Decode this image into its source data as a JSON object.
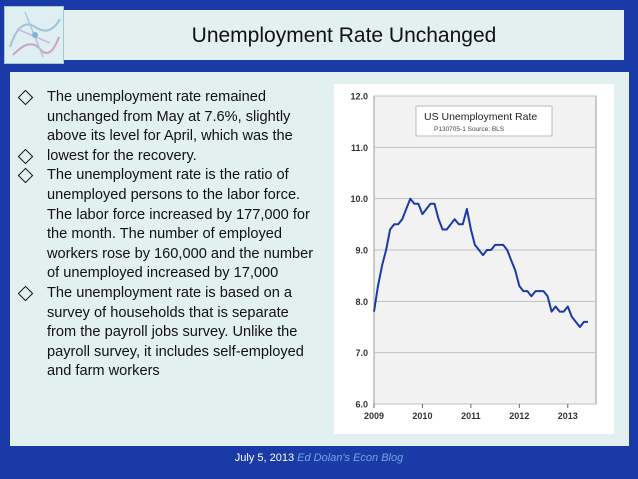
{
  "slide": {
    "title": "Unemployment Rate Unchanged",
    "bullets": [
      {
        "text": "The unemployment rate remained unchanged from May at 7.6%, slightly above its level for April, which was the",
        "lines": [
          "The unemployment rate remained",
          "unchanged from May at 7.6%, slightly",
          "above its level for April, which was the"
        ]
      },
      {
        "text": "lowest for the recovery.",
        "lines": [
          "lowest for the recovery."
        ]
      },
      {
        "text": "The unemployment rate is the ratio of unemployed persons to the labor force. The labor force increased by 177,000 for the month. The number of employed workers rose by 160,000 and the number of unemployed increased by 17,000",
        "lines": [
          "The unemployment rate is the ratio of",
          "unemployed persons to the labor force.",
          "The labor force increased by 177,000 for",
          "the month. The number of employed",
          "workers rose by 160,000 and the number",
          "of unemployed increased by 17,000"
        ]
      },
      {
        "text": "The unemployment rate is based on a survey of households that is separate from the payroll jobs survey. Unlike the payroll survey, it includes self-employed and farm workers",
        "lines": [
          "The unemployment rate is based on a",
          "survey of households that is separate",
          "from the payroll jobs survey. Unlike the",
          "payroll survey, it includes self-employed",
          "and farm workers"
        ]
      }
    ],
    "footer": {
      "date": "July 5, 2013",
      "blog": "Ed Dolan's Econ Blog"
    }
  },
  "colors": {
    "background": "#1a3aa8",
    "panel": "#e2f0ef",
    "line": "#1a3aa8",
    "plot_bg": "#f2f2f2",
    "grid": "#c0c0c0",
    "footer_link": "#6fa8dc"
  },
  "icons": {
    "bullet": "diamond-outline-icon",
    "logo": "logo-icon"
  },
  "chart_data": {
    "type": "line",
    "title": "US Unemployment  Rate",
    "subtitle": "P130705-1 Source: BLS",
    "xlabel": "",
    "ylabel": "",
    "ylim": [
      6.0,
      12.0
    ],
    "yticks": [
      "6.0",
      "7.0",
      "8.0",
      "9.0",
      "10.0",
      "11.0",
      "12.0"
    ],
    "xlim": [
      2009.0,
      2013.583
    ],
    "xticks": [
      "2009",
      "2010",
      "2011",
      "2012",
      "2013"
    ],
    "grid": true,
    "series": [
      {
        "x": [
          2009.0,
          2009.083,
          2009.167,
          2009.25,
          2009.333,
          2009.417,
          2009.5,
          2009.583,
          2009.667,
          2009.75,
          2009.833,
          2009.917,
          2010.0,
          2010.083,
          2010.167,
          2010.25,
          2010.333,
          2010.417,
          2010.5,
          2010.583,
          2010.667,
          2010.75,
          2010.833,
          2010.917,
          2011.0,
          2011.083,
          2011.167,
          2011.25,
          2011.333,
          2011.417,
          2011.5,
          2011.583,
          2011.667,
          2011.75,
          2011.833,
          2011.917,
          2012.0,
          2012.083,
          2012.167,
          2012.25,
          2012.333,
          2012.417,
          2012.5,
          2012.583,
          2012.667,
          2012.75,
          2012.833,
          2012.917,
          2013.0,
          2013.083,
          2013.167,
          2013.25,
          2013.333,
          2013.417
        ],
        "values": [
          7.8,
          8.3,
          8.7,
          9.0,
          9.4,
          9.5,
          9.5,
          9.6,
          9.8,
          10.0,
          9.9,
          9.9,
          9.7,
          9.8,
          9.9,
          9.9,
          9.6,
          9.4,
          9.4,
          9.5,
          9.6,
          9.5,
          9.5,
          9.8,
          9.4,
          9.1,
          9.0,
          8.9,
          9.0,
          9.0,
          9.1,
          9.1,
          9.1,
          9.0,
          8.8,
          8.6,
          8.3,
          8.2,
          8.2,
          8.1,
          8.2,
          8.2,
          8.2,
          8.1,
          7.8,
          7.9,
          7.8,
          7.8,
          7.9,
          7.7,
          7.6,
          7.5,
          7.6,
          7.6
        ]
      }
    ]
  }
}
